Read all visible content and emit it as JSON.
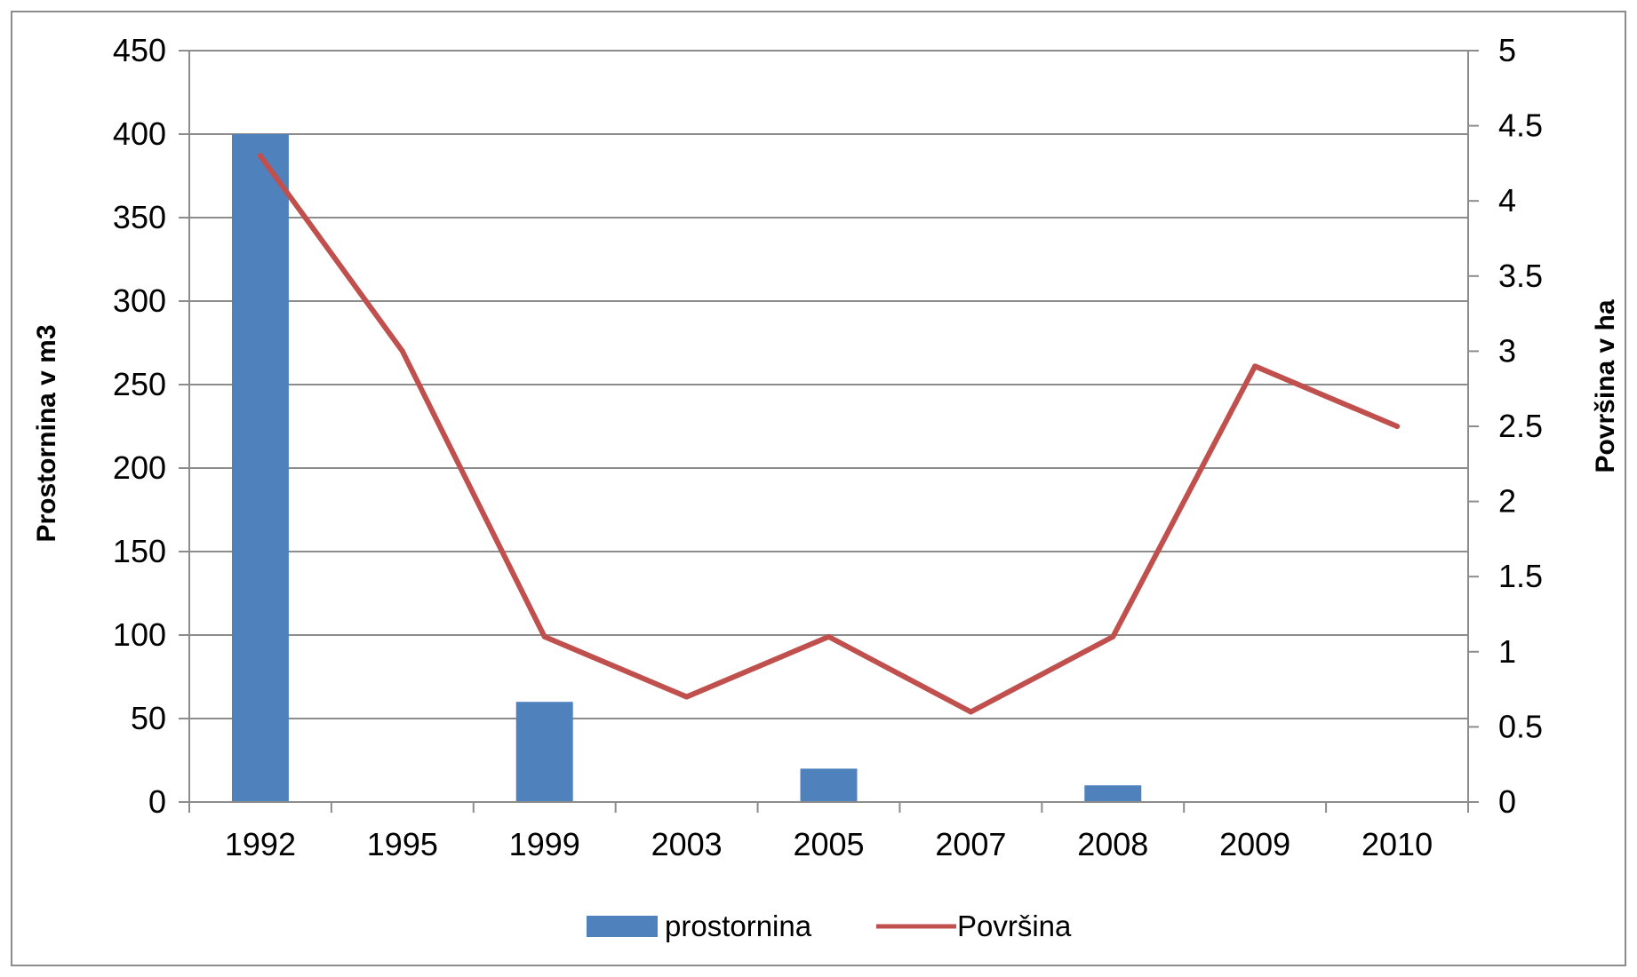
{
  "chart_data": {
    "type": "bar",
    "categories": [
      "1992",
      "1995",
      "1999",
      "2003",
      "2005",
      "2007",
      "2008",
      "2009",
      "2010"
    ],
    "series": [
      {
        "name": "prostornina",
        "type": "bar",
        "axis": "left",
        "color": "#4f81bd",
        "values": [
          400,
          0,
          60,
          0,
          20,
          0,
          10,
          0,
          0
        ]
      },
      {
        "name": "Površina",
        "type": "line",
        "axis": "right",
        "color": "#c0504d",
        "values": [
          4.3,
          3.0,
          1.1,
          0.7,
          1.1,
          0.6,
          1.1,
          2.9,
          2.5
        ]
      }
    ],
    "ylabel": "Prostornina v m3",
    "y2label": "Površina v ha",
    "ylim": [
      0,
      450
    ],
    "y2lim": [
      0,
      5
    ],
    "yticks": [
      "0",
      "50",
      "100",
      "150",
      "200",
      "250",
      "300",
      "350",
      "400",
      "450"
    ],
    "y2ticks": [
      "0",
      "0.5",
      "1",
      "1.5",
      "2",
      "2.5",
      "3",
      "3.5",
      "4",
      "4.5",
      "5"
    ],
    "grid": true,
    "legend_position": "bottom"
  }
}
